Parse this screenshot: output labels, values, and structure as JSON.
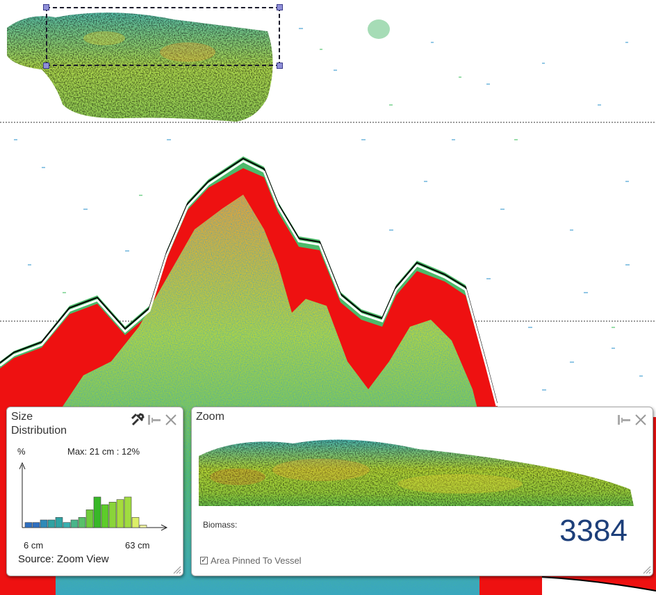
{
  "size_panel": {
    "title": "Size\nDistribution",
    "percent_label": "%",
    "max_label": "Max: 21 cm : 12%",
    "min_length": "6 cm",
    "max_length": "63 cm",
    "source": "Source: Zoom View",
    "histogram_values": [
      2,
      2,
      3,
      3,
      4,
      2,
      3,
      4,
      7,
      12,
      9,
      10,
      11,
      12,
      4,
      1
    ],
    "histogram_colors": [
      "#2f6fc0",
      "#2f6fc0",
      "#2f8ab8",
      "#2fa3a3",
      "#2fa3a3",
      "#3ab0b0",
      "#48b58a",
      "#58c06a",
      "#6fcc3a",
      "#38b828",
      "#5dcc2a",
      "#8ad43a",
      "#a6dc3c",
      "#a0dc40",
      "#dcef68",
      "#f0f3a0"
    ],
    "icons": [
      "wrench-icon",
      "pin-icon",
      "close-icon"
    ]
  },
  "zoom_panel": {
    "title": "Zoom",
    "biomass_label": "Biomass:",
    "biomass_value": "3384",
    "pinned_label": "Area Pinned To Vessel",
    "pinned_checked": true,
    "icons": [
      "pin-icon",
      "close-icon"
    ]
  },
  "colors": {
    "bottom_red": "#ee1111",
    "scale": [
      "#2f6fd8",
      "#22aaaa",
      "#33bb55",
      "#88cc22",
      "#dddd22",
      "#f5aa22",
      "#ee1111"
    ]
  }
}
